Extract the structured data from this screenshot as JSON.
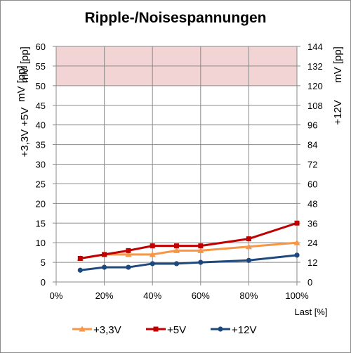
{
  "chart_data": {
    "type": "line",
    "title": "Ripple-/Noisespannungen",
    "xlabel": "Last [%]",
    "ylabel_left_top": "mV [pp]",
    "ylabel_left_bottom": "+3,3V  +5V",
    "ylabel_right_top": "mV [pp]",
    "ylabel_right_bottom": "+12V",
    "x_ticks": [
      0,
      20,
      40,
      60,
      80,
      100
    ],
    "x_tick_labels": [
      "0%",
      "20%",
      "40%",
      "60%",
      "80%",
      "100%"
    ],
    "xlim": [
      0,
      100
    ],
    "ylim_left": [
      0,
      60
    ],
    "y_ticks_left": [
      0,
      5,
      10,
      15,
      20,
      25,
      30,
      35,
      40,
      45,
      50,
      55,
      60
    ],
    "ylim_right": [
      0,
      144
    ],
    "y_ticks_right": [
      0,
      12,
      24,
      36,
      48,
      60,
      72,
      84,
      96,
      108,
      120,
      132,
      144
    ],
    "limit_band_left": [
      50,
      60
    ],
    "limit_band_color": "#f2d4d4",
    "grid": true,
    "legend_position": "bottom",
    "x": [
      10,
      20,
      30,
      40,
      50,
      60,
      80,
      100
    ],
    "series": [
      {
        "name": "+3,3V",
        "axis": "left",
        "color": "#f79646",
        "marker": "triangle",
        "values": [
          6,
          7,
          7,
          7,
          8,
          8,
          9,
          10
        ]
      },
      {
        "name": "+5V",
        "axis": "left",
        "color": "#c00000",
        "marker": "square",
        "values": [
          6,
          7,
          8,
          9.2,
          9.2,
          9.2,
          11,
          15
        ]
      },
      {
        "name": "+12V",
        "axis": "right",
        "color": "#1f497d",
        "marker": "circle",
        "values": [
          7.2,
          9,
          9,
          11.2,
          11.2,
          12,
          13.2,
          16.4
        ]
      }
    ]
  }
}
